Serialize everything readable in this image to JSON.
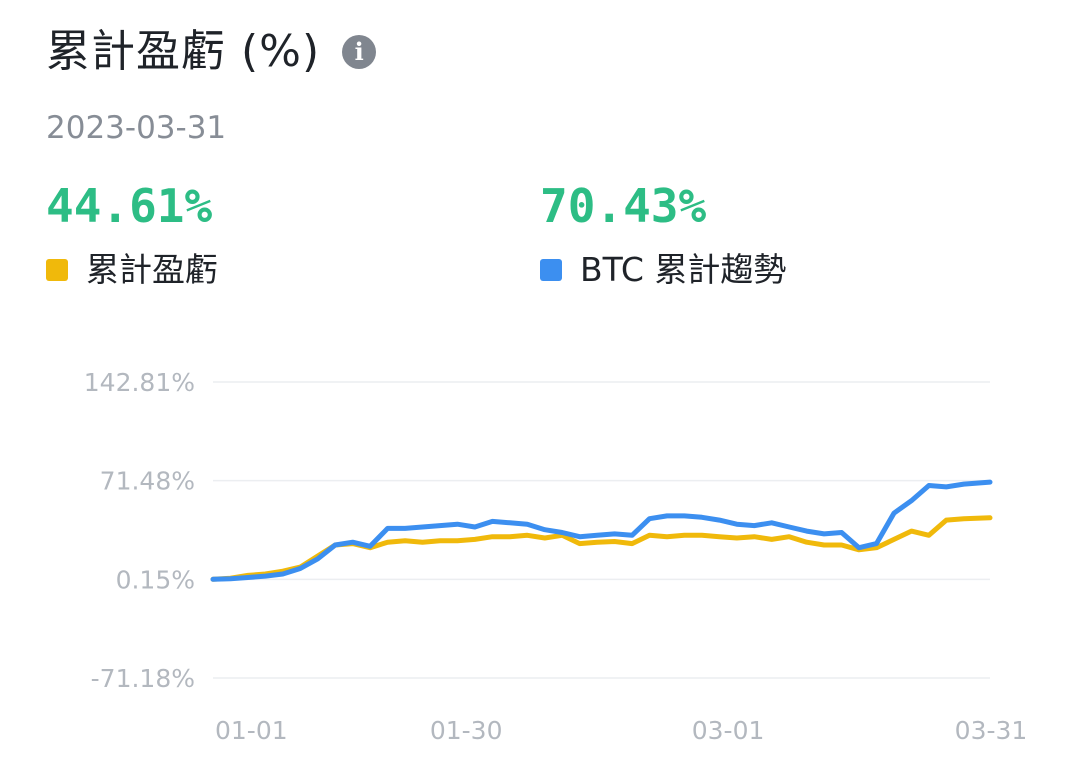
{
  "header": {
    "title": "累計盈虧 (%)",
    "info_icon": "info-icon",
    "date": "2023-03-31"
  },
  "stats": [
    {
      "value": "44.61%",
      "label": "累計盈虧",
      "color": "#f0b90b"
    },
    {
      "value": "70.43%",
      "label": "BTC 累計趨勢",
      "color": "#3c8ff0"
    }
  ],
  "chart_data": {
    "type": "line",
    "title": "",
    "xlabel": "",
    "ylabel": "",
    "y_tick_labels": [
      "142.81%",
      "71.48%",
      "0.15%",
      "-71.18%"
    ],
    "y_ticks": [
      142.81,
      71.48,
      0.15,
      -71.18
    ],
    "ylim": [
      -71.18,
      142.81
    ],
    "x_tick_labels": [
      "01-01",
      "01-30",
      "03-01",
      "03-31"
    ],
    "x_range": [
      "2023-01-01",
      "2023-03-31"
    ],
    "grid": true,
    "series": [
      {
        "name": "累計盈虧",
        "color": "#f0b90b",
        "x": [
          "2023-01-01",
          "2023-01-03",
          "2023-01-05",
          "2023-01-07",
          "2023-01-09",
          "2023-01-11",
          "2023-01-13",
          "2023-01-15",
          "2023-01-17",
          "2023-01-19",
          "2023-01-21",
          "2023-01-23",
          "2023-01-25",
          "2023-01-27",
          "2023-01-29",
          "2023-01-31",
          "2023-02-02",
          "2023-02-04",
          "2023-02-06",
          "2023-02-08",
          "2023-02-10",
          "2023-02-12",
          "2023-02-14",
          "2023-02-16",
          "2023-02-18",
          "2023-02-20",
          "2023-02-22",
          "2023-02-24",
          "2023-02-26",
          "2023-02-28",
          "2023-03-02",
          "2023-03-04",
          "2023-03-06",
          "2023-03-08",
          "2023-03-10",
          "2023-03-12",
          "2023-03-14",
          "2023-03-16",
          "2023-03-18",
          "2023-03-20",
          "2023-03-22",
          "2023-03-24",
          "2023-03-26",
          "2023-03-28",
          "2023-03-31"
        ],
        "values": [
          0.15,
          1.0,
          3.0,
          4.0,
          6.0,
          9.0,
          17.0,
          25.0,
          26.0,
          23.0,
          27.0,
          28.0,
          27.0,
          28.0,
          28.0,
          29.0,
          31.0,
          31.0,
          32.0,
          30.0,
          32.0,
          26.0,
          27.0,
          27.5,
          26.0,
          32.0,
          31.0,
          32.0,
          32.0,
          31.0,
          30.0,
          31.0,
          29.0,
          31.0,
          27.0,
          25.0,
          25.0,
          21.5,
          23.0,
          29.0,
          35.0,
          32.0,
          43.0,
          44.0,
          44.61
        ]
      },
      {
        "name": "BTC 累計趨勢",
        "color": "#3c8ff0",
        "x": [
          "2023-01-01",
          "2023-01-03",
          "2023-01-05",
          "2023-01-07",
          "2023-01-09",
          "2023-01-11",
          "2023-01-13",
          "2023-01-15",
          "2023-01-17",
          "2023-01-19",
          "2023-01-21",
          "2023-01-23",
          "2023-01-25",
          "2023-01-27",
          "2023-01-29",
          "2023-01-31",
          "2023-02-02",
          "2023-02-04",
          "2023-02-06",
          "2023-02-08",
          "2023-02-10",
          "2023-02-12",
          "2023-02-14",
          "2023-02-16",
          "2023-02-18",
          "2023-02-20",
          "2023-02-22",
          "2023-02-24",
          "2023-02-26",
          "2023-02-28",
          "2023-03-02",
          "2023-03-04",
          "2023-03-06",
          "2023-03-08",
          "2023-03-10",
          "2023-03-12",
          "2023-03-14",
          "2023-03-16",
          "2023-03-18",
          "2023-03-20",
          "2023-03-22",
          "2023-03-24",
          "2023-03-26",
          "2023-03-28",
          "2023-03-31"
        ],
        "values": [
          0.15,
          0.5,
          1.5,
          2.5,
          4.0,
          8.0,
          15.0,
          25.0,
          27.0,
          24.0,
          37.0,
          37.0,
          38.0,
          39.0,
          40.0,
          38.0,
          42.0,
          41.0,
          40.0,
          36.0,
          34.0,
          31.0,
          32.0,
          33.0,
          32.0,
          44.0,
          46.0,
          46.0,
          45.0,
          43.0,
          40.0,
          39.0,
          41.0,
          38.0,
          35.0,
          33.0,
          34.0,
          23.0,
          26.0,
          48.0,
          57.0,
          68.0,
          67.0,
          69.0,
          70.43
        ]
      }
    ]
  }
}
